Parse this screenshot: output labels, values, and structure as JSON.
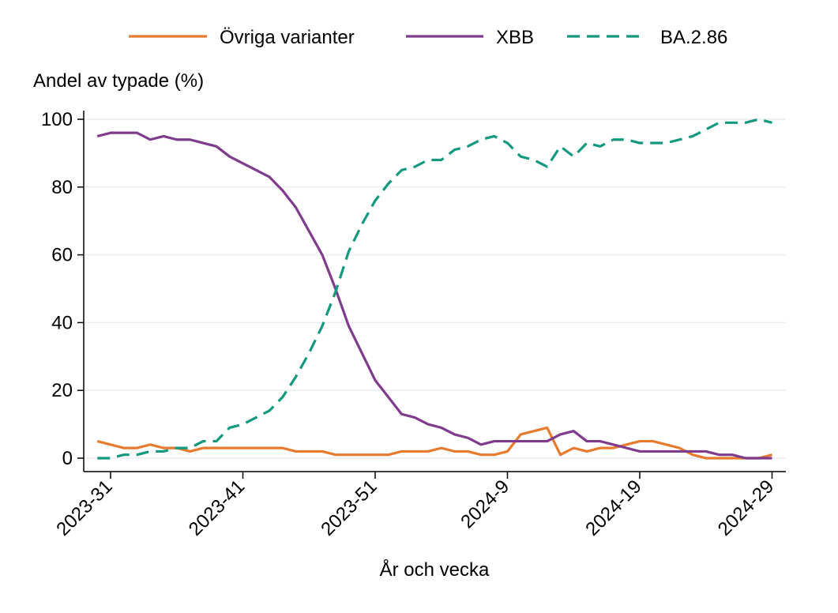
{
  "chart_data": {
    "type": "line",
    "ylabel": "Andel av typade (%)",
    "xlabel": "År och vecka",
    "ylim": [
      0,
      100
    ],
    "yticks": [
      0,
      20,
      40,
      60,
      80,
      100
    ],
    "x_start_index": -2,
    "x_end_index": 49,
    "xticks": [
      {
        "index": 0,
        "label": "2023-31"
      },
      {
        "index": 10,
        "label": "2023-41"
      },
      {
        "index": 20,
        "label": "2023-51"
      },
      {
        "index": 30,
        "label": "2024-9"
      },
      {
        "index": 40,
        "label": "2024-19"
      },
      {
        "index": 50,
        "label": "2024-29"
      }
    ],
    "grid": true,
    "legend_position": "top",
    "series": [
      {
        "name": "Övriga varianter",
        "color": "#E87A2D",
        "dash": "solid",
        "values": [
          5,
          4,
          3,
          3,
          4,
          3,
          3,
          2,
          3,
          3,
          3,
          3,
          3,
          3,
          3,
          2,
          2,
          2,
          1,
          1,
          1,
          1,
          1,
          2,
          2,
          2,
          3,
          2,
          2,
          1,
          1,
          2,
          7,
          8,
          9,
          1,
          3,
          2,
          3,
          3,
          4,
          5,
          5,
          4,
          3,
          1,
          0,
          0,
          0,
          0,
          0,
          1
        ]
      },
      {
        "name": "XBB",
        "color": "#7F3B8C",
        "dash": "solid",
        "values": [
          95,
          96,
          96,
          96,
          94,
          95,
          94,
          94,
          93,
          92,
          89,
          87,
          85,
          83,
          79,
          74,
          67,
          60,
          50,
          39,
          31,
          23,
          18,
          13,
          12,
          10,
          9,
          7,
          6,
          4,
          5,
          5,
          5,
          5,
          5,
          7,
          8,
          5,
          5,
          4,
          3,
          2,
          2,
          2,
          2,
          2,
          2,
          1,
          1,
          0,
          0,
          0
        ]
      },
      {
        "name": "BA.2.86",
        "color": "#14997F",
        "dash": "dashed",
        "values": [
          0,
          0,
          1,
          1,
          2,
          2,
          3,
          3,
          5,
          5,
          9,
          10,
          12,
          14,
          18,
          24,
          31,
          39,
          49,
          61,
          69,
          76,
          81,
          85,
          86,
          88,
          88,
          91,
          92,
          94,
          95,
          93,
          89,
          88,
          86,
          92,
          89,
          93,
          92,
          94,
          94,
          93,
          93,
          93,
          94,
          95,
          97,
          99,
          99,
          99,
          100,
          99
        ]
      }
    ]
  }
}
